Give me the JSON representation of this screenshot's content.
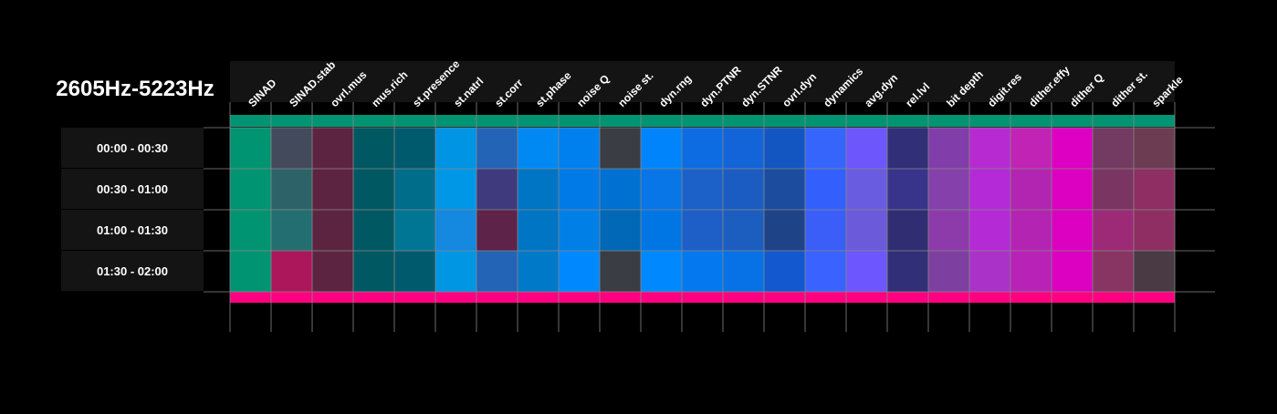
{
  "chart_data": {
    "type": "heatmap",
    "title": "2605Hz-5223Hz",
    "rows": [
      "00:00 - 00:30",
      "00:30 - 01:00",
      "01:00 - 01:30",
      "01:30 - 02:00"
    ],
    "columns": [
      "SINAD",
      "SINAD.stab",
      "ovrl.mus",
      "mus.rich",
      "st.presence",
      "st.natrl",
      "st.corr",
      "st.phase",
      "noise Q",
      "noise st.",
      "dyn.rng",
      "dyn.PTNR",
      "dyn.STNR",
      "ovrl.dyn",
      "dynamics",
      "avg.dyn",
      "rel.lvl",
      "bit depth",
      "digit.res",
      "dither.effy",
      "dither Q",
      "dither st.",
      "sparkle"
    ],
    "cell_colors": [
      [
        "#009472",
        "#434a5b",
        "#5d2442",
        "#005862",
        "#005a6e",
        "#0094e4",
        "#2364b6",
        "#0089f3",
        "#0080ef",
        "#3a3d44",
        "#0084fb",
        "#0e6ce2",
        "#1264d8",
        "#1356c1",
        "#3565fa",
        "#6c56fc",
        "#302f78",
        "#813eaa",
        "#b72ad1",
        "#c124b4",
        "#dd00c3",
        "#733a62",
        "#6c3c52"
      ],
      [
        "#009472",
        "#2d6368",
        "#5d2442",
        "#005862",
        "#006d8a",
        "#0098e6",
        "#3f3a7d",
        "#0075c4",
        "#007ae6",
        "#0070d3",
        "#0876e6",
        "#1b61c8",
        "#1b5cc2",
        "#1b4c9e",
        "#3360fd",
        "#6a5ce1",
        "#38338b",
        "#8640ac",
        "#b42ad6",
        "#b225b1",
        "#dc00c0",
        "#7b3562",
        "#8f2e62"
      ],
      [
        "#009472",
        "#226e70",
        "#5d2442",
        "#005862",
        "#007694",
        "#1588e0",
        "#5d2348",
        "#0075c4",
        "#0080e7",
        "#0068b6",
        "#0076e5",
        "#1d5fc6",
        "#1c5dc0",
        "#1f4387",
        "#3a5ef7",
        "#6b5ada",
        "#312d73",
        "#8d3aab",
        "#b42ad4",
        "#b424b3",
        "#dc00c0",
        "#9d2a77",
        "#8f2e62"
      ],
      [
        "#009472",
        "#ab175a",
        "#5d2442",
        "#005862",
        "#005a6e",
        "#0096e4",
        "#2364b6",
        "#0079c8",
        "#0089ff",
        "#3a3d44",
        "#0089ff",
        "#0478ee",
        "#0772e6",
        "#1358ce",
        "#3a62fe",
        "#6d56fd",
        "#302f78",
        "#7e40a0",
        "#aa32c8",
        "#b822b6",
        "#dc00c0",
        "#893563",
        "#4a3a44"
      ]
    ],
    "top_band_color": "#009472",
    "bottom_band_color": "#ff0080",
    "background_color": "#000000",
    "grid_color": "#888888",
    "label_box_color": "#141414",
    "grid": true
  }
}
